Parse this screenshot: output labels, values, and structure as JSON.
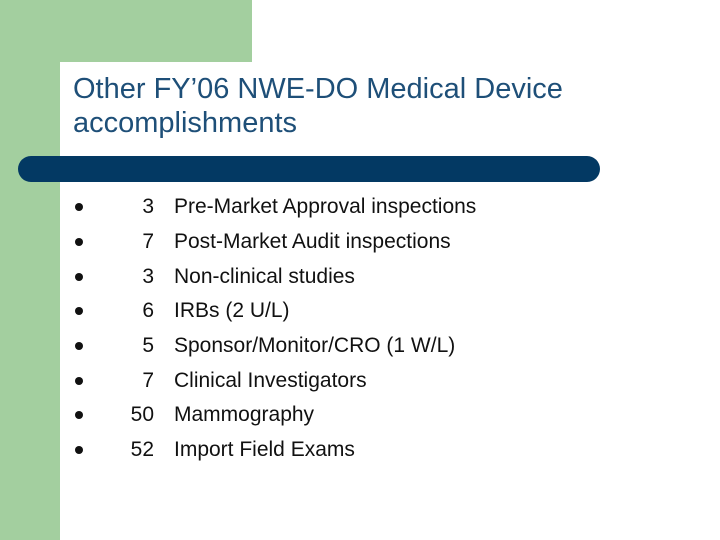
{
  "slide": {
    "title_lines": [
      "Other FY’06 NWE-DO Medical Device",
      "accomplishments"
    ],
    "items": [
      {
        "count": "3",
        "label": "Pre-Market Approval inspections"
      },
      {
        "count": "7",
        "label": "Post-Market Audit inspections"
      },
      {
        "count": "3",
        "label": "Non-clinical studies"
      },
      {
        "count": "6",
        "label": "IRBs (2 U/L)"
      },
      {
        "count": "5",
        "label": "Sponsor/Monitor/CRO (1 W/L)"
      },
      {
        "count": "7",
        "label": "Clinical Investigators"
      },
      {
        "count": "50",
        "label": "Mammography"
      },
      {
        "count": "52",
        "label": "Import Field Exams"
      }
    ]
  },
  "colors": {
    "accent_green": "#a3cf9f",
    "title_blue": "#1e4f78",
    "rule_navy": "#033963"
  }
}
